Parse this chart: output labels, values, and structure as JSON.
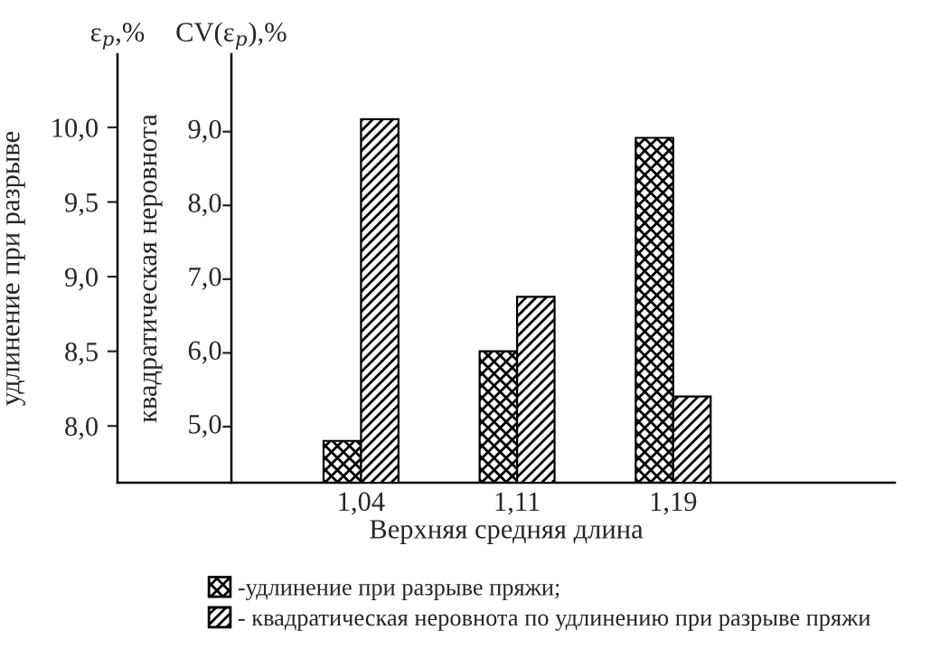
{
  "chart_data": {
    "type": "bar",
    "categories": [
      "1,04",
      "1,11",
      "1,19"
    ],
    "xlabel": "Верхняя средняя длина",
    "ylabel": "удлинение при разрыве",
    "y2label": "квадратическая неровнота",
    "annotations": [
      "ε$_{p}$,%",
      "CV(ε$_{p}$),%"
    ],
    "series": [
      {
        "name": "-удлинение при разрыве пряжи;",
        "color": "#000000",
        "values": [
          7.9,
          8.5,
          9.93
        ]
      },
      {
        "name": "- квадратическая неровнота по удлинению при разрыве пряжи",
        "color": "#000000",
        "axis": "y2",
        "values": [
          9.17,
          6.76,
          5.41
        ]
      }
    ],
    "ylim": [
      7.62,
      10.49
    ],
    "yticks": [
      {
        "value": 8.0,
        "label": "8,0"
      },
      {
        "value": 8.5,
        "label": "8,5"
      },
      {
        "value": 9.0,
        "label": "9,0"
      },
      {
        "value": 9.5,
        "label": "9,5"
      },
      {
        "value": 10.0,
        "label": "10,0"
      }
    ],
    "y2lim": [
      4.24,
      10.05
    ],
    "y2ticks": [
      {
        "value": 5.0,
        "label": "5,0"
      },
      {
        "value": 6.0,
        "label": "6,0"
      },
      {
        "value": 7.0,
        "label": "7,0"
      },
      {
        "value": 8.0,
        "label": "8,0"
      },
      {
        "value": 9.0,
        "label": "9,0"
      }
    ],
    "grid": false,
    "legend": "bottom"
  }
}
